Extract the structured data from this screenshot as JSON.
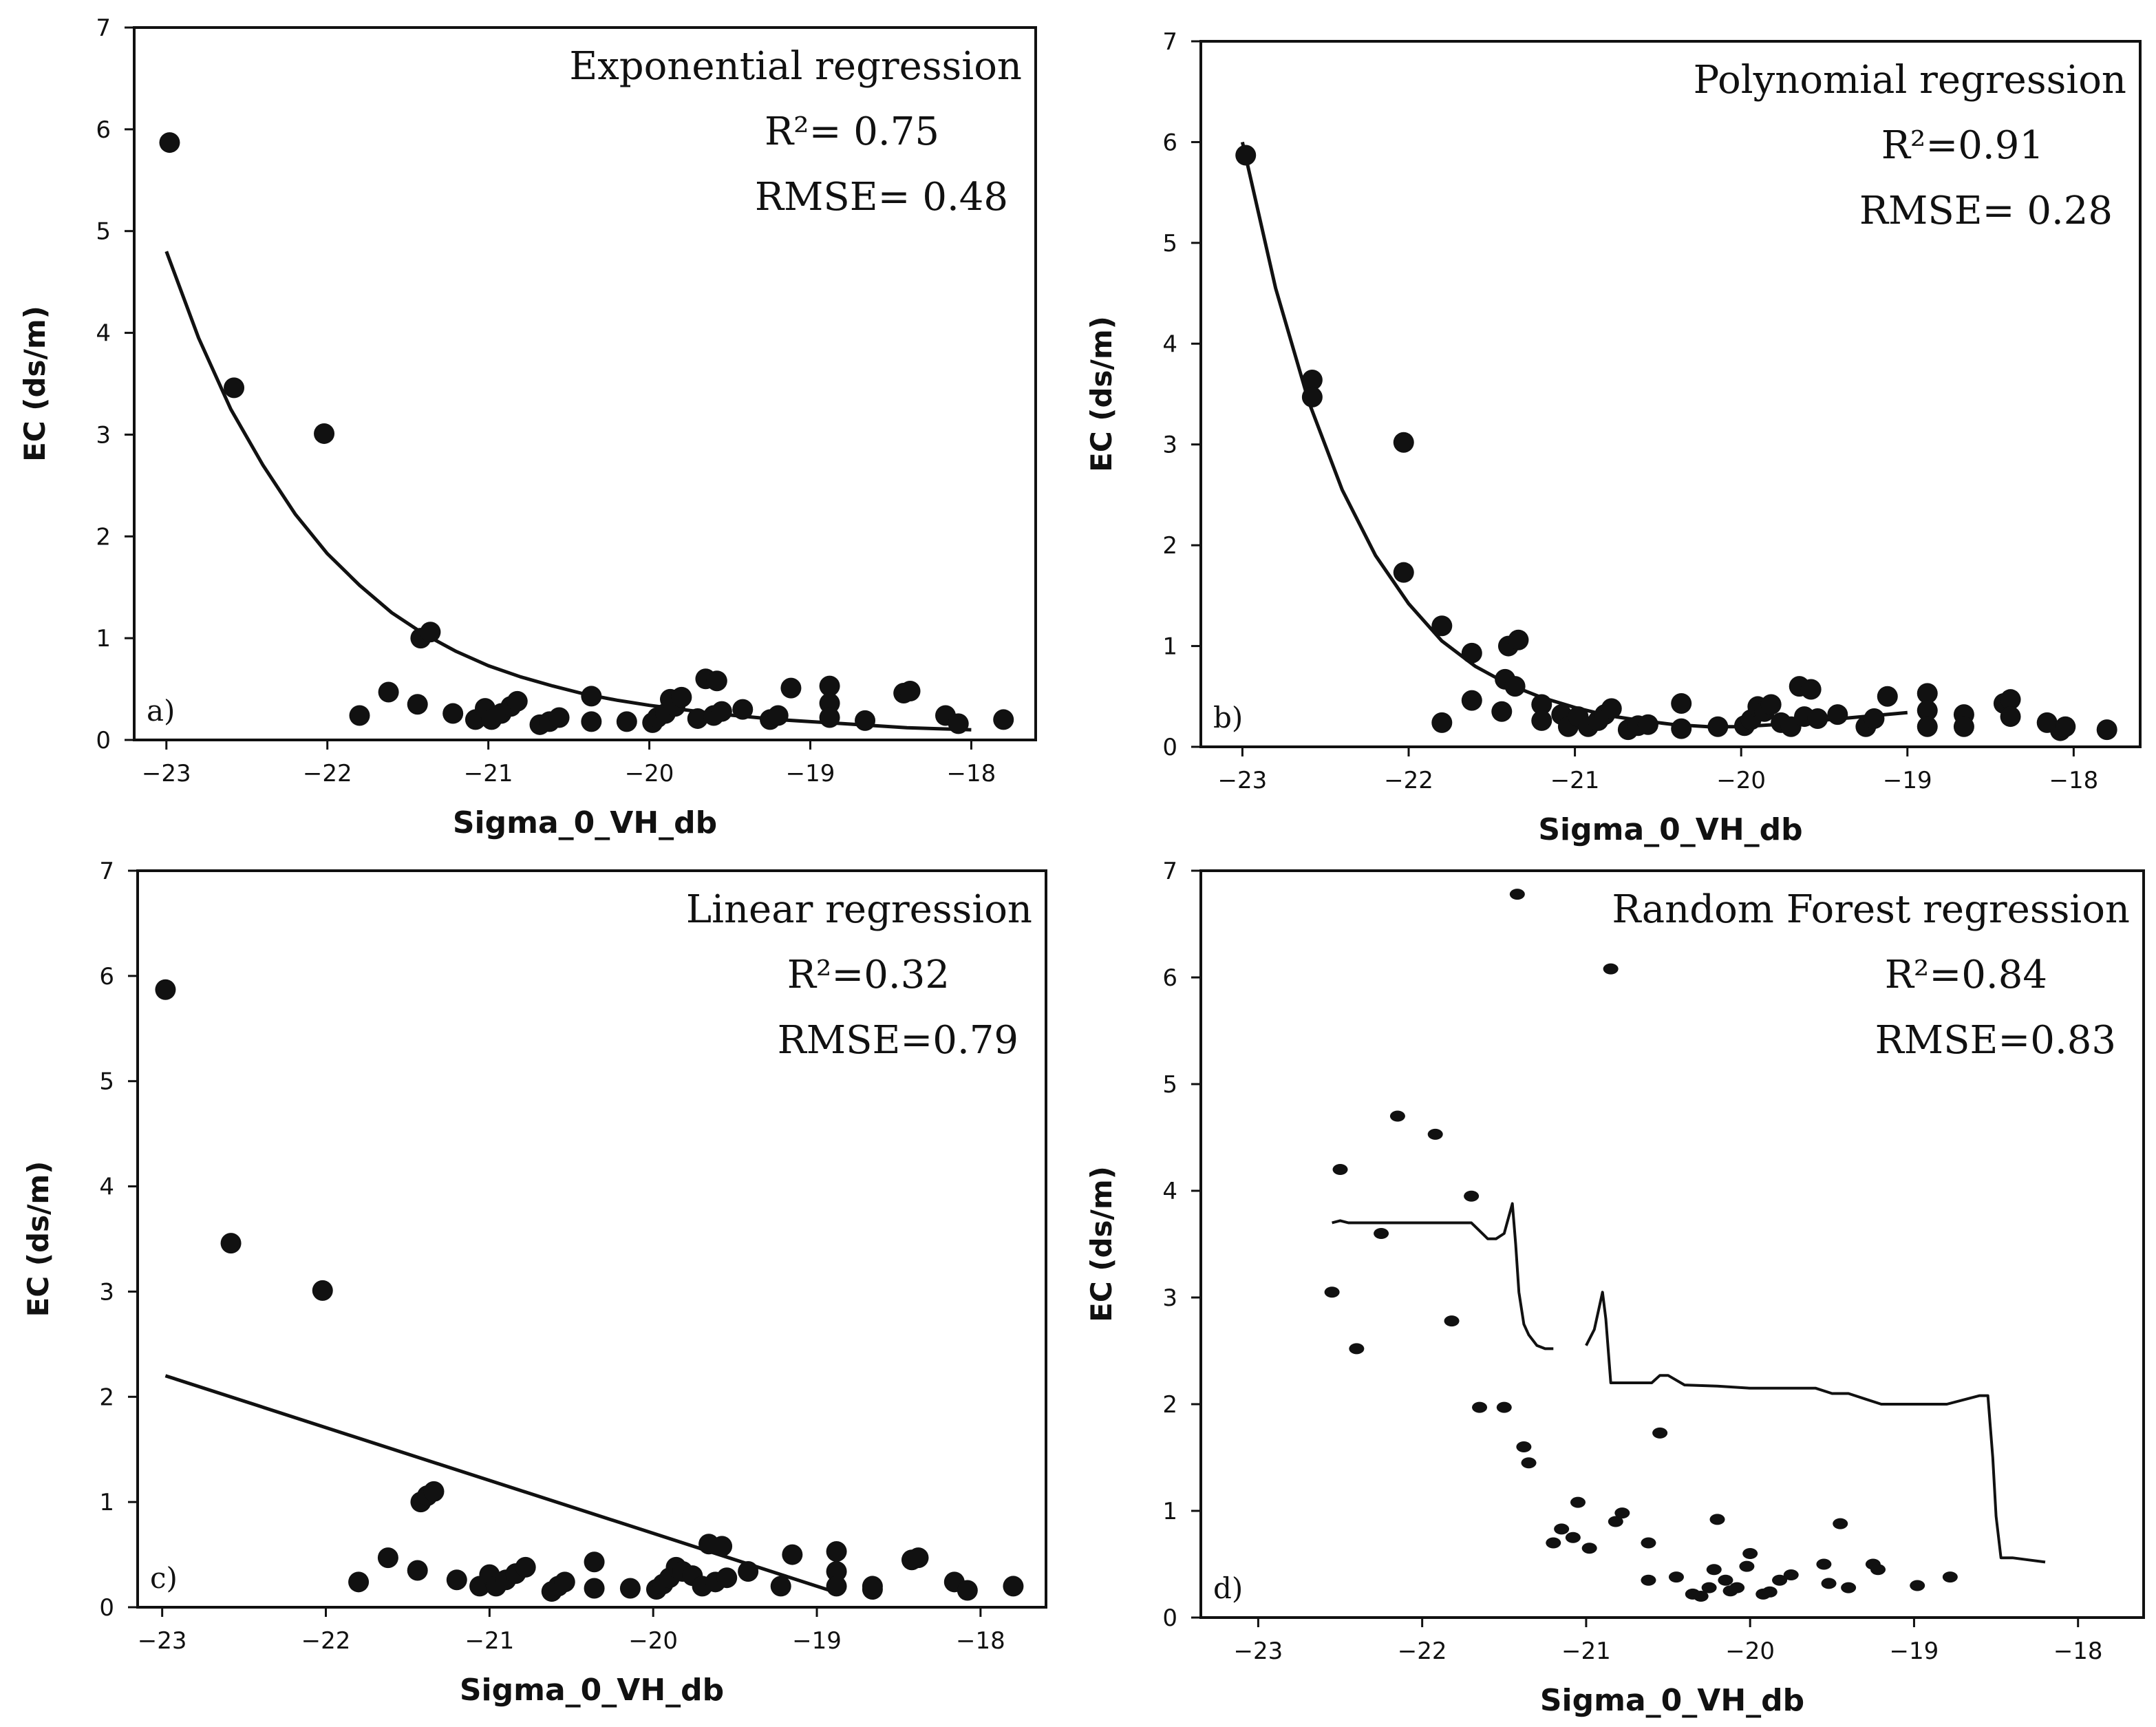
{
  "figure": {
    "panels": [
      {
        "id": "a",
        "panel_label": "a)",
        "title": "Exponential regression",
        "r2_text": "R²= 0.75",
        "rmse_text": "RMSE= 0.48",
        "xlabel": "Sigma_0_VH_db",
        "ylabel": "EC (ds/m)"
      },
      {
        "id": "b",
        "panel_label": "b)",
        "title": "Polynomial regression",
        "r2_text": "R²=0.91",
        "rmse_text": "RMSE= 0.28",
        "xlabel": "Sigma_0_VH_db",
        "ylabel": "EC (ds/m)"
      },
      {
        "id": "c",
        "panel_label": "c)",
        "title": "Linear regression",
        "r2_text": "R²=0.32",
        "rmse_text": "RMSE=0.79",
        "xlabel": "Sigma_0_VH_db",
        "ylabel": "EC (ds/m)"
      },
      {
        "id": "d",
        "panel_label": "d)",
        "title": "Random Forest regression",
        "r2_text": "R²=0.84",
        "rmse_text": "RMSE=0.83",
        "xlabel": "Sigma_0_VH_db",
        "ylabel": "EC (ds/m)"
      }
    ]
  },
  "chart_data": [
    {
      "type": "scatter",
      "title": "Exponential regression",
      "xlabel": "Sigma_0_VH_db",
      "ylabel": "EC (ds/m)",
      "xlim": [
        -23.2,
        -17.6
      ],
      "ylim": [
        0,
        7
      ],
      "xticks": [
        -23,
        -22,
        -21,
        -20,
        -19,
        -18
      ],
      "xtick_labels": [
        "−23",
        "−22",
        "−21",
        "−20",
        "−19",
        "−18"
      ],
      "yticks": [
        0,
        1,
        2,
        3,
        4,
        5,
        6,
        7
      ],
      "ytick_labels": [
        "0",
        "1",
        "2",
        "3",
        "4",
        "5",
        "6",
        "7"
      ],
      "points": [
        [
          -22.98,
          5.87
        ],
        [
          -22.58,
          3.46
        ],
        [
          -22.02,
          3.01
        ],
        [
          -21.8,
          0.24
        ],
        [
          -21.62,
          0.47
        ],
        [
          -21.44,
          0.35
        ],
        [
          -21.42,
          1.0
        ],
        [
          -21.36,
          1.06
        ],
        [
          -21.22,
          0.26
        ],
        [
          -21.08,
          0.2
        ],
        [
          -21.02,
          0.31
        ],
        [
          -20.98,
          0.2
        ],
        [
          -20.92,
          0.26
        ],
        [
          -20.86,
          0.33
        ],
        [
          -20.82,
          0.38
        ],
        [
          -20.68,
          0.15
        ],
        [
          -20.62,
          0.18
        ],
        [
          -20.56,
          0.22
        ],
        [
          -20.36,
          0.43
        ],
        [
          -20.36,
          0.18
        ],
        [
          -20.14,
          0.18
        ],
        [
          -19.98,
          0.17
        ],
        [
          -19.95,
          0.22
        ],
        [
          -19.9,
          0.26
        ],
        [
          -19.87,
          0.4
        ],
        [
          -19.84,
          0.33
        ],
        [
          -19.8,
          0.42
        ],
        [
          -19.7,
          0.21
        ],
        [
          -19.65,
          0.6
        ],
        [
          -19.6,
          0.24
        ],
        [
          -19.58,
          0.58
        ],
        [
          -19.55,
          0.28
        ],
        [
          -19.42,
          0.3
        ],
        [
          -19.25,
          0.2
        ],
        [
          -19.2,
          0.24
        ],
        [
          -19.12,
          0.51
        ],
        [
          -18.88,
          0.53
        ],
        [
          -18.88,
          0.36
        ],
        [
          -18.88,
          0.22
        ],
        [
          -18.66,
          0.19
        ],
        [
          -18.42,
          0.46
        ],
        [
          -18.38,
          0.48
        ],
        [
          -18.16,
          0.24
        ],
        [
          -18.08,
          0.16
        ],
        [
          -17.8,
          0.2
        ]
      ],
      "curve": {
        "name": "exponential fit",
        "x": [
          -23,
          -22.8,
          -22.6,
          -22.4,
          -22.2,
          -22,
          -21.8,
          -21.6,
          -21.4,
          -21.2,
          -21,
          -20.8,
          -20.6,
          -20.4,
          -20.2,
          -20,
          -19.8,
          -19.6,
          -19.4,
          -19.2,
          -19,
          -18.8,
          -18.6,
          -18.4,
          -18.2,
          -18
        ],
        "y": [
          4.8,
          3.95,
          3.25,
          2.7,
          2.22,
          1.83,
          1.52,
          1.25,
          1.04,
          0.87,
          0.73,
          0.62,
          0.53,
          0.45,
          0.39,
          0.34,
          0.3,
          0.26,
          0.23,
          0.2,
          0.18,
          0.16,
          0.14,
          0.12,
          0.11,
          0.1
        ]
      }
    },
    {
      "type": "scatter",
      "title": "Polynomial regression",
      "xlabel": "Sigma_0_VH_db",
      "ylabel": "EC (ds/m)",
      "xlim": [
        -23.25,
        -17.6
      ],
      "ylim": [
        0,
        7
      ],
      "xticks": [
        -23,
        -22,
        -21,
        -20,
        -19,
        -18
      ],
      "xtick_labels": [
        "−23",
        "−22",
        "−21",
        "−20",
        "−19",
        "−18"
      ],
      "yticks": [
        0,
        1,
        2,
        3,
        4,
        5,
        6,
        7
      ],
      "ytick_labels": [
        "0",
        "1",
        "2",
        "3",
        "4",
        "5",
        "6",
        "7"
      ],
      "points": [
        [
          -22.98,
          5.87
        ],
        [
          -22.58,
          3.64
        ],
        [
          -22.58,
          3.47
        ],
        [
          -22.03,
          3.02
        ],
        [
          -22.03,
          1.73
        ],
        [
          -21.8,
          1.2
        ],
        [
          -21.8,
          0.24
        ],
        [
          -21.62,
          0.93
        ],
        [
          -21.62,
          0.46
        ],
        [
          -21.44,
          0.35
        ],
        [
          -21.42,
          0.67
        ],
        [
          -21.36,
          0.6
        ],
        [
          -21.4,
          1.0
        ],
        [
          -21.34,
          1.06
        ],
        [
          -21.2,
          0.42
        ],
        [
          -21.2,
          0.26
        ],
        [
          -21.08,
          0.32
        ],
        [
          -21.04,
          0.2
        ],
        [
          -20.98,
          0.3
        ],
        [
          -20.92,
          0.2
        ],
        [
          -20.86,
          0.26
        ],
        [
          -20.82,
          0.32
        ],
        [
          -20.78,
          0.38
        ],
        [
          -20.68,
          0.17
        ],
        [
          -20.62,
          0.21
        ],
        [
          -20.56,
          0.22
        ],
        [
          -20.36,
          0.43
        ],
        [
          -20.36,
          0.18
        ],
        [
          -20.14,
          0.2
        ],
        [
          -19.98,
          0.21
        ],
        [
          -19.94,
          0.27
        ],
        [
          -19.9,
          0.4
        ],
        [
          -19.86,
          0.35
        ],
        [
          -19.82,
          0.42
        ],
        [
          -19.76,
          0.24
        ],
        [
          -19.7,
          0.2
        ],
        [
          -19.65,
          0.6
        ],
        [
          -19.62,
          0.3
        ],
        [
          -19.58,
          0.57
        ],
        [
          -19.54,
          0.28
        ],
        [
          -19.42,
          0.32
        ],
        [
          -19.25,
          0.2
        ],
        [
          -19.2,
          0.28
        ],
        [
          -19.12,
          0.5
        ],
        [
          -18.88,
          0.53
        ],
        [
          -18.88,
          0.36
        ],
        [
          -18.88,
          0.2
        ],
        [
          -18.66,
          0.32
        ],
        [
          -18.66,
          0.2
        ],
        [
          -18.42,
          0.43
        ],
        [
          -18.38,
          0.47
        ],
        [
          -18.38,
          0.3
        ],
        [
          -18.16,
          0.24
        ],
        [
          -18.08,
          0.16
        ],
        [
          -18.05,
          0.2
        ],
        [
          -17.8,
          0.17
        ]
      ],
      "curve": {
        "name": "polynomial fit",
        "x": [
          -23,
          -22.8,
          -22.6,
          -22.4,
          -22.2,
          -22,
          -21.8,
          -21.6,
          -21.4,
          -21.2,
          -21,
          -20.8,
          -20.6,
          -20.4,
          -20.2,
          -20,
          -19.8,
          -19.6,
          -19.4,
          -19.2,
          -19
        ],
        "y": [
          6.0,
          4.55,
          3.42,
          2.55,
          1.9,
          1.42,
          1.05,
          0.8,
          0.62,
          0.49,
          0.39,
          0.31,
          0.26,
          0.22,
          0.2,
          0.2,
          0.22,
          0.25,
          0.28,
          0.31,
          0.34
        ]
      }
    },
    {
      "type": "scatter",
      "title": "Linear regression",
      "xlabel": "Sigma_0_VH_db",
      "ylabel": "EC (ds/m)",
      "xlim": [
        -23.15,
        -17.6
      ],
      "ylim": [
        0,
        7
      ],
      "xticks": [
        -23,
        -22,
        -21,
        -20,
        -19,
        -18
      ],
      "xtick_labels": [
        "−23",
        "−22",
        "−21",
        "−20",
        "−19",
        "−18"
      ],
      "yticks": [
        0,
        1,
        2,
        3,
        4,
        5,
        6,
        7
      ],
      "ytick_labels": [
        "0",
        "1",
        "2",
        "3",
        "4",
        "5",
        "6",
        "7"
      ],
      "points": [
        [
          -22.98,
          5.87
        ],
        [
          -22.58,
          3.46
        ],
        [
          -22.02,
          3.01
        ],
        [
          -21.8,
          0.24
        ],
        [
          -21.62,
          0.47
        ],
        [
          -21.44,
          0.35
        ],
        [
          -21.42,
          1.0
        ],
        [
          -21.38,
          1.06
        ],
        [
          -21.34,
          1.1
        ],
        [
          -21.2,
          0.26
        ],
        [
          -21.06,
          0.2
        ],
        [
          -21.0,
          0.31
        ],
        [
          -20.96,
          0.2
        ],
        [
          -20.9,
          0.26
        ],
        [
          -20.84,
          0.32
        ],
        [
          -20.78,
          0.38
        ],
        [
          -20.62,
          0.15
        ],
        [
          -20.58,
          0.2
        ],
        [
          -20.54,
          0.24
        ],
        [
          -20.36,
          0.43
        ],
        [
          -20.36,
          0.18
        ],
        [
          -20.14,
          0.18
        ],
        [
          -19.98,
          0.17
        ],
        [
          -19.94,
          0.22
        ],
        [
          -19.9,
          0.28
        ],
        [
          -19.86,
          0.38
        ],
        [
          -19.82,
          0.34
        ],
        [
          -19.76,
          0.3
        ],
        [
          -19.7,
          0.2
        ],
        [
          -19.66,
          0.6
        ],
        [
          -19.62,
          0.24
        ],
        [
          -19.58,
          0.58
        ],
        [
          -19.55,
          0.28
        ],
        [
          -19.42,
          0.34
        ],
        [
          -19.22,
          0.2
        ],
        [
          -19.15,
          0.5
        ],
        [
          -18.88,
          0.53
        ],
        [
          -18.88,
          0.34
        ],
        [
          -18.88,
          0.2
        ],
        [
          -18.66,
          0.2
        ],
        [
          -18.66,
          0.17
        ],
        [
          -18.42,
          0.45
        ],
        [
          -18.38,
          0.47
        ],
        [
          -18.16,
          0.24
        ],
        [
          -18.08,
          0.16
        ],
        [
          -17.8,
          0.2
        ]
      ],
      "curve": {
        "name": "linear fit",
        "x": [
          -22.98,
          -18.9
        ],
        "y": [
          2.2,
          0.15
        ]
      }
    },
    {
      "type": "scatter",
      "title": "Random Forest regression",
      "xlabel": "Sigma_0_VH_db",
      "ylabel": "EC (ds/m)",
      "xlim": [
        -23.35,
        -17.6
      ],
      "ylim": [
        0,
        7
      ],
      "xticks": [
        -23,
        -22,
        -21,
        -20,
        -19,
        -18
      ],
      "xtick_labels": [
        "−23",
        "−22",
        "−21",
        "−20",
        "−19",
        "−18"
      ],
      "yticks": [
        0,
        1,
        2,
        3,
        4,
        5,
        6,
        7
      ],
      "ytick_labels": [
        "0",
        "1",
        "2",
        "3",
        "4",
        "5",
        "6",
        "7"
      ],
      "points": [
        [
          -22.55,
          3.05
        ],
        [
          -22.5,
          4.2
        ],
        [
          -22.4,
          2.52
        ],
        [
          -22.25,
          3.6
        ],
        [
          -22.15,
          4.7
        ],
        [
          -21.92,
          4.53
        ],
        [
          -21.82,
          2.78
        ],
        [
          -21.7,
          3.95
        ],
        [
          -21.65,
          1.97
        ],
        [
          -21.5,
          1.97
        ],
        [
          -21.42,
          6.78
        ],
        [
          -21.38,
          1.6
        ],
        [
          -21.35,
          1.45
        ],
        [
          -21.2,
          0.7
        ],
        [
          -21.15,
          0.83
        ],
        [
          -21.08,
          0.75
        ],
        [
          -21.05,
          1.08
        ],
        [
          -20.98,
          0.65
        ],
        [
          -20.85,
          6.08
        ],
        [
          -20.82,
          0.9
        ],
        [
          -20.78,
          0.98
        ],
        [
          -20.62,
          0.7
        ],
        [
          -20.62,
          0.35
        ],
        [
          -20.55,
          1.73
        ],
        [
          -20.45,
          0.38
        ],
        [
          -20.35,
          0.22
        ],
        [
          -20.3,
          0.2
        ],
        [
          -20.25,
          0.28
        ],
        [
          -20.22,
          0.45
        ],
        [
          -20.2,
          0.92
        ],
        [
          -20.15,
          0.35
        ],
        [
          -20.12,
          0.25
        ],
        [
          -20.08,
          0.28
        ],
        [
          -20.02,
          0.48
        ],
        [
          -20.0,
          0.6
        ],
        [
          -19.92,
          0.22
        ],
        [
          -19.88,
          0.24
        ],
        [
          -19.82,
          0.35
        ],
        [
          -19.75,
          0.4
        ],
        [
          -19.55,
          0.5
        ],
        [
          -19.52,
          0.32
        ],
        [
          -19.45,
          0.88
        ],
        [
          -19.4,
          0.28
        ],
        [
          -19.25,
          0.5
        ],
        [
          -19.22,
          0.45
        ],
        [
          -18.98,
          0.3
        ],
        [
          -18.78,
          0.38
        ]
      ],
      "curve": {
        "name": "random forest prediction",
        "segments": [
          {
            "x": [
              -22.55,
              -22.5,
              -22.45,
              -22.3,
              -22.1,
              -21.9,
              -21.7,
              -21.6,
              -21.55,
              -21.5,
              -21.45,
              -21.43,
              -21.41,
              -21.38,
              -21.35,
              -21.3,
              -21.25,
              -21.2
            ],
            "y": [
              3.7,
              3.72,
              3.7,
              3.7,
              3.7,
              3.7,
              3.7,
              3.55,
              3.55,
              3.6,
              3.88,
              3.5,
              3.05,
              2.75,
              2.65,
              2.55,
              2.52,
              2.52
            ]
          },
          {
            "x": [
              -21.0,
              -20.95,
              -20.9,
              -20.88,
              -20.85,
              -20.82,
              -20.7,
              -20.6,
              -20.55,
              -20.5,
              -20.4,
              -20.2,
              -20.0,
              -19.8,
              -19.6,
              -19.5,
              -19.4,
              -19.3,
              -19.2,
              -19.0,
              -18.8,
              -18.6,
              -18.55,
              -18.52,
              -18.5,
              -18.47,
              -18.4,
              -18.3,
              -18.2
            ],
            "y": [
              2.55,
              2.7,
              3.05,
              2.8,
              2.2,
              2.2,
              2.2,
              2.2,
              2.27,
              2.27,
              2.18,
              2.17,
              2.15,
              2.15,
              2.15,
              2.1,
              2.1,
              2.05,
              2.0,
              2.0,
              2.0,
              2.08,
              2.08,
              1.5,
              0.95,
              0.56,
              0.56,
              0.54,
              0.52
            ]
          }
        ]
      }
    }
  ]
}
